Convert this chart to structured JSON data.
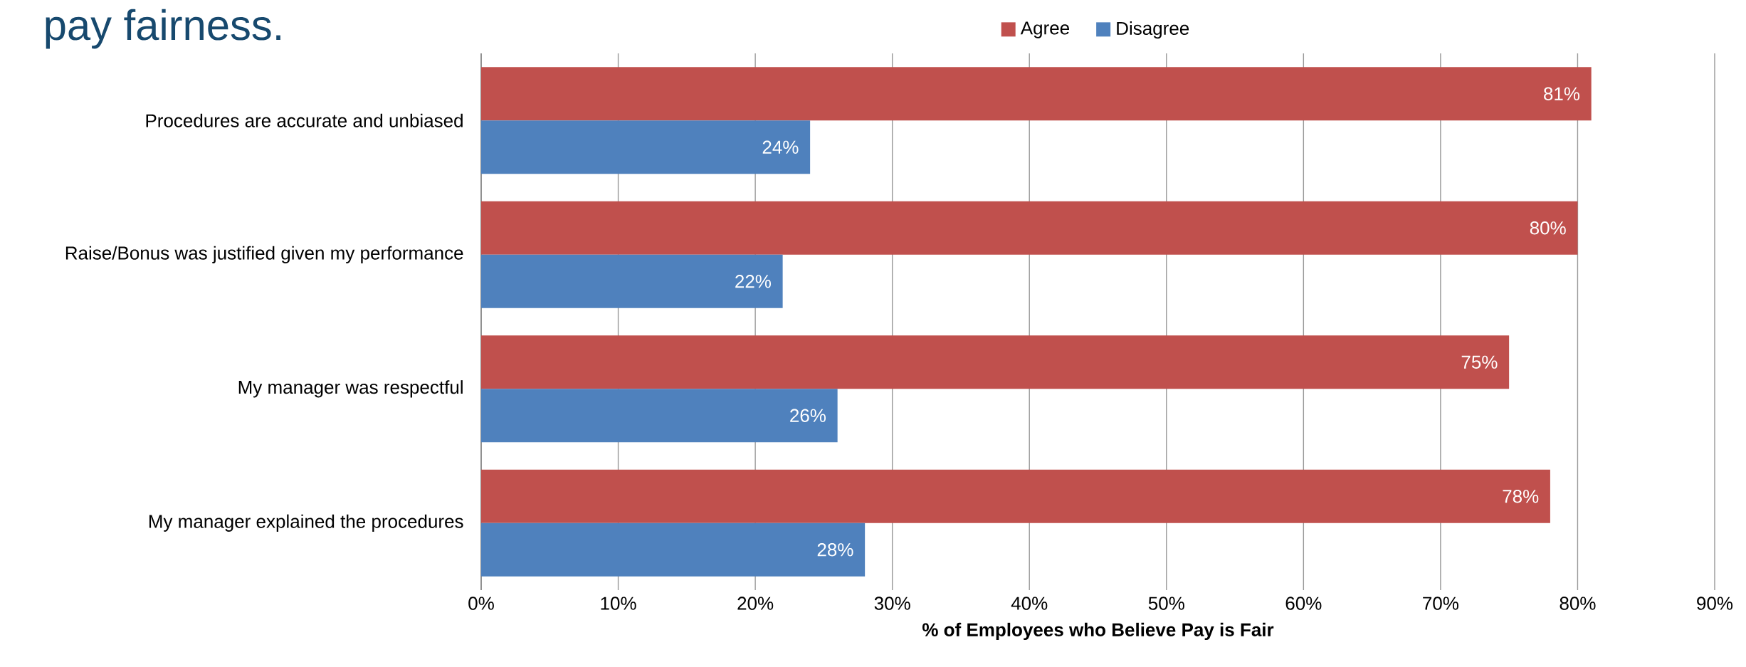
{
  "chart_data": {
    "type": "bar",
    "orientation": "horizontal",
    "title": "pay fairness.",
    "xlabel": "% of Employees who Believe Pay is Fair",
    "categories": [
      "Procedures are accurate and unbiased",
      "Raise/Bonus was justified given my performance",
      "My manager was respectful",
      "My manager explained the procedures"
    ],
    "series": [
      {
        "name": "Agree",
        "color": "#c0504d",
        "values": [
          81,
          80,
          75,
          78
        ],
        "value_labels": [
          "81%",
          "80%",
          "75%",
          "78%"
        ]
      },
      {
        "name": "Disagree",
        "color": "#4f81bd",
        "values": [
          24,
          22,
          26,
          28
        ],
        "value_labels": [
          "24%",
          "22%",
          "26%",
          "28%"
        ]
      }
    ],
    "xlim": [
      0,
      90
    ],
    "xticks": [
      {
        "value": 0,
        "label": "0%"
      },
      {
        "value": 10,
        "label": "10%"
      },
      {
        "value": 20,
        "label": "20%"
      },
      {
        "value": 30,
        "label": "30%"
      },
      {
        "value": 40,
        "label": "40%"
      },
      {
        "value": 50,
        "label": "50%"
      },
      {
        "value": 60,
        "label": "60%"
      },
      {
        "value": 70,
        "label": "70%"
      },
      {
        "value": 80,
        "label": "80%"
      },
      {
        "value": 90,
        "label": "90%"
      }
    ],
    "grid": "x",
    "legend": "top"
  }
}
